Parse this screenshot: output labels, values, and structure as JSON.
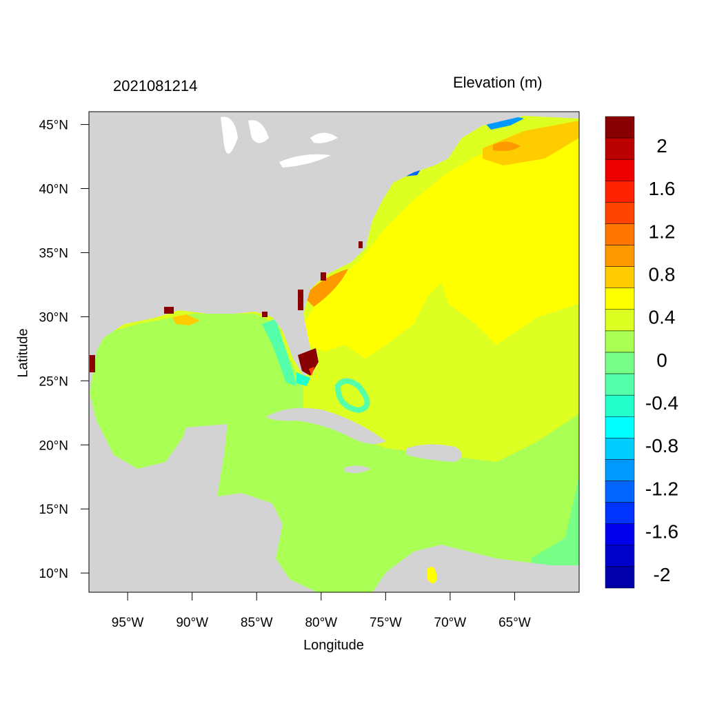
{
  "title_left": "2021081214",
  "title_right": "Elevation (m)",
  "xlabel": "Longitude",
  "ylabel": "Latitude",
  "map": {
    "lon_range": [
      -98,
      -60
    ],
    "lat_range": [
      8.5,
      46
    ],
    "lon_ticks": [
      {
        "value": -95,
        "label": "95°W"
      },
      {
        "value": -90,
        "label": "90°W"
      },
      {
        "value": -85,
        "label": "85°W"
      },
      {
        "value": -80,
        "label": "80°W"
      },
      {
        "value": -75,
        "label": "75°W"
      },
      {
        "value": -70,
        "label": "70°W"
      },
      {
        "value": -65,
        "label": "65°W"
      }
    ],
    "lat_ticks": [
      {
        "value": 45,
        "label": "45°N"
      },
      {
        "value": 40,
        "label": "40°N"
      },
      {
        "value": 35,
        "label": "35°N"
      },
      {
        "value": 30,
        "label": "30°N"
      },
      {
        "value": 25,
        "label": "25°N"
      },
      {
        "value": 20,
        "label": "20°N"
      },
      {
        "value": 15,
        "label": "15°N"
      },
      {
        "value": 10,
        "label": "10°N"
      }
    ],
    "land_color": "#d3d3d3",
    "colors": {
      "gulf_caribbean": "#aaff55",
      "atlantic_near": "#ffff00",
      "atlantic_far": "#ddff22",
      "ne_shelf": "#ffcc00",
      "surge_high": "#880000"
    }
  },
  "colorbar": {
    "colors": [
      "#880000",
      "#bb0000",
      "#ee0000",
      "#ff2200",
      "#ff4400",
      "#ff7700",
      "#ff9900",
      "#ffcc00",
      "#ffff00",
      "#ddff22",
      "#aaff55",
      "#77ff88",
      "#55ffaa",
      "#22ffcc",
      "#00ffff",
      "#00ccff",
      "#0099ff",
      "#0066ff",
      "#0033ff",
      "#0000ee",
      "#0000cc",
      "#0000aa"
    ],
    "labels": [
      {
        "text": "2",
        "after_index": 1
      },
      {
        "text": "1.6",
        "after_index": 3
      },
      {
        "text": "1.2",
        "after_index": 5
      },
      {
        "text": "0.8",
        "after_index": 7
      },
      {
        "text": "0.4",
        "after_index": 9
      },
      {
        "text": "0",
        "after_index": 11
      },
      {
        "text": "-0.4",
        "after_index": 13
      },
      {
        "text": "-0.8",
        "after_index": 15
      },
      {
        "text": "-1.2",
        "after_index": 17
      },
      {
        "text": "-1.6",
        "after_index": 19
      },
      {
        "text": "-2",
        "after_index": 21
      }
    ]
  }
}
